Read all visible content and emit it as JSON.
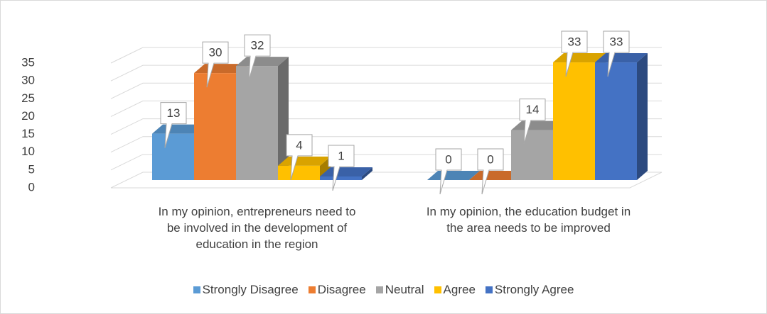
{
  "chart_data": {
    "type": "bar3d",
    "categories": [
      "In my opinion, entrepreneurs need to be involved in the development of education in the region",
      "In my opinion, the education budget in the area needs to be improved"
    ],
    "series": [
      {
        "name": "Strongly Disagree",
        "color": "#5b9bd5",
        "values": [
          13,
          0
        ]
      },
      {
        "name": "Disagree",
        "color": "#ed7d31",
        "values": [
          30,
          0
        ]
      },
      {
        "name": "Neutral",
        "color": "#a5a5a5",
        "values": [
          32,
          14
        ]
      },
      {
        "name": "Agree",
        "color": "#ffc000",
        "values": [
          4,
          33
        ]
      },
      {
        "name": "Strongly Agree",
        "color": "#4472c4",
        "values": [
          1,
          33
        ]
      }
    ],
    "ylim": [
      0,
      35
    ],
    "yticks": [
      0,
      5,
      10,
      15,
      20,
      25,
      30,
      35
    ],
    "grid": true,
    "legend": "bottom"
  }
}
